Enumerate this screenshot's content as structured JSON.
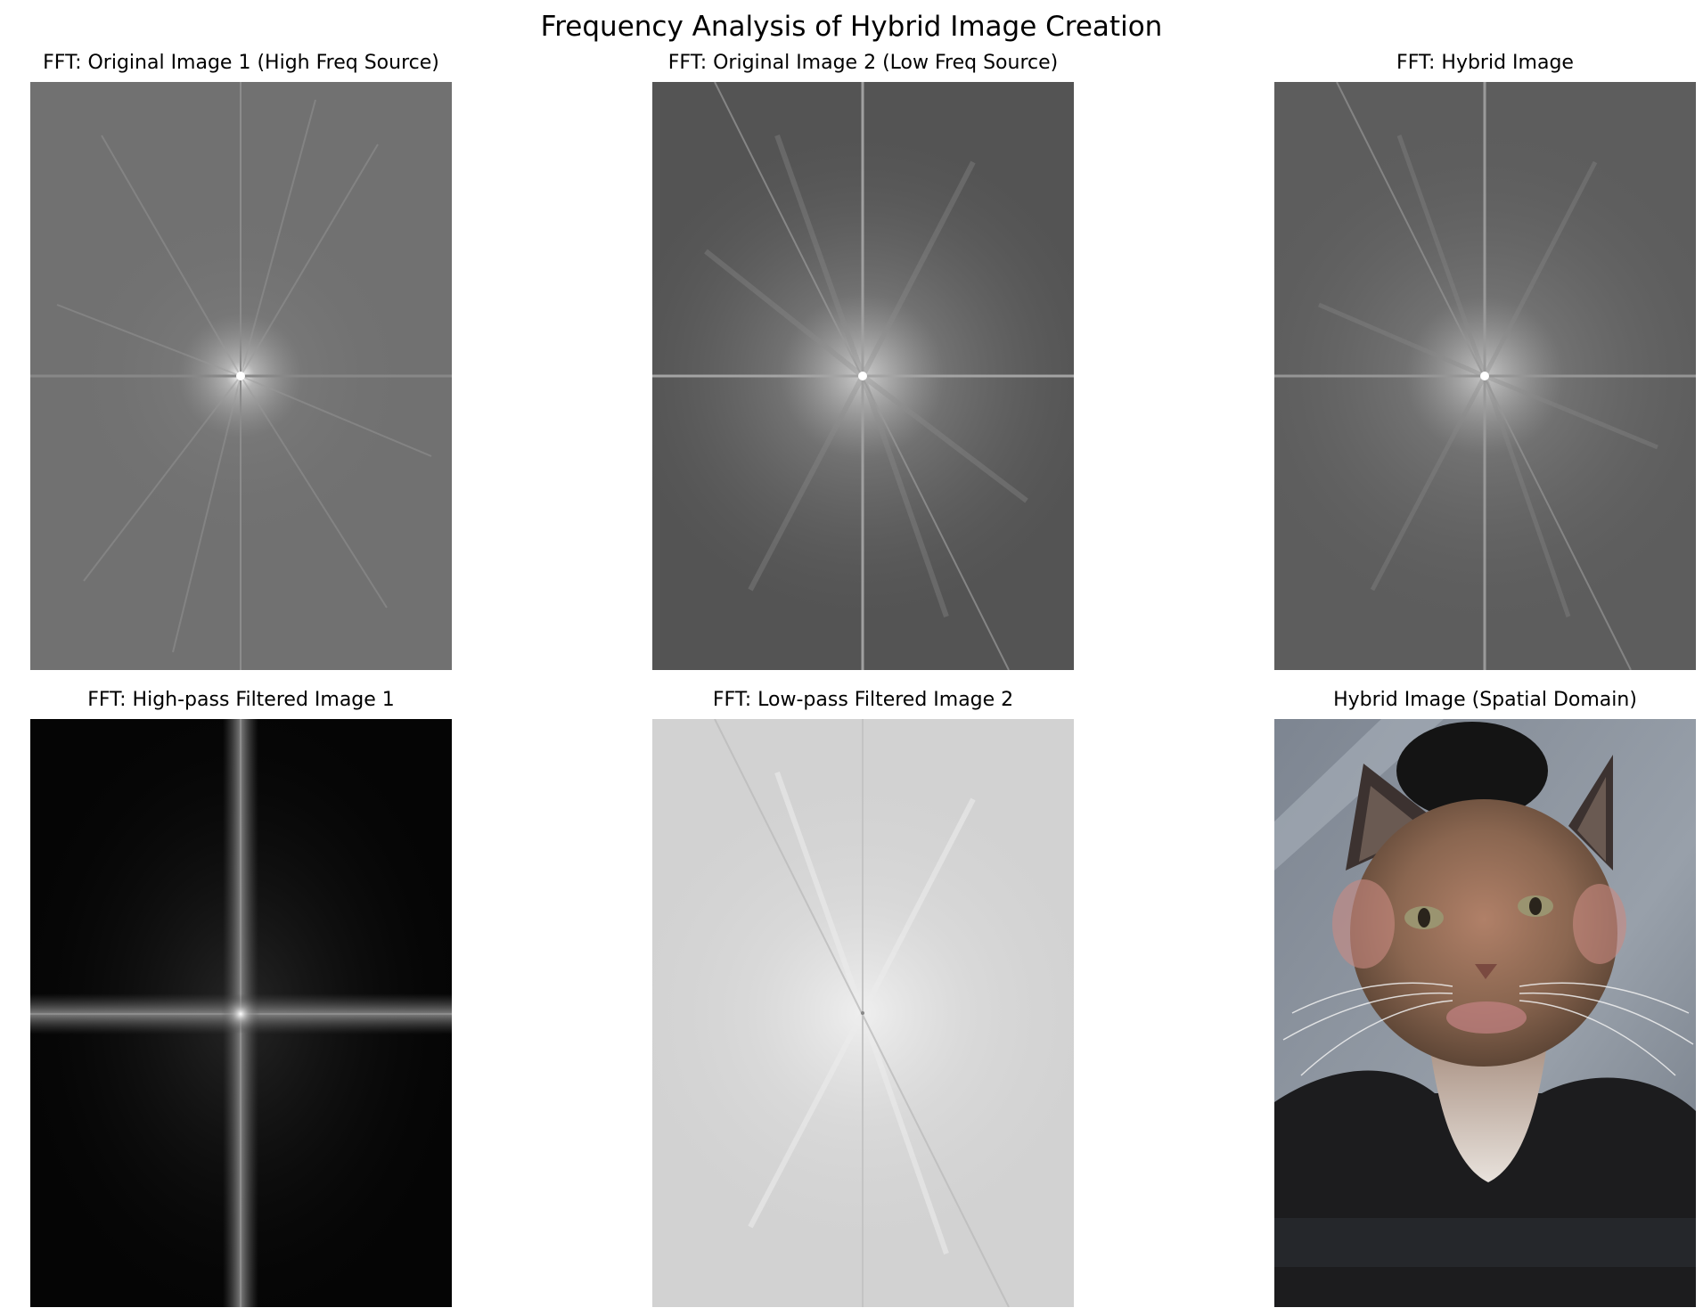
{
  "figure": {
    "title": "Frequency Analysis of Hybrid Image Creation"
  },
  "panels": [
    {
      "title": "FFT: Original Image 1 (High Freq Source)",
      "kind": "fft-spectrum",
      "tone": "mid-gray"
    },
    {
      "title": "FFT: Original Image 2 (Low Freq Source)",
      "kind": "fft-spectrum",
      "tone": "mid-gray"
    },
    {
      "title": "FFT: Hybrid Image",
      "kind": "fft-spectrum",
      "tone": "mid-gray"
    },
    {
      "title": "FFT: High-pass Filtered Image 1",
      "kind": "fft-spectrum",
      "tone": "dark"
    },
    {
      "title": "FFT: Low-pass Filtered Image 2",
      "kind": "fft-spectrum",
      "tone": "light-gray"
    },
    {
      "title": "Hybrid Image (Spatial Domain)",
      "kind": "photo",
      "subject": "cat-face hybrid portrait"
    }
  ],
  "colors": {
    "fft_mid_gray": "#6f6f6f",
    "fft_dark": "#060606",
    "fft_light_gray": "#d4d4d4",
    "hybrid_background": "#8a9099",
    "cat_fur": "#8a6a55",
    "shirt_dark": "#1c1c1e"
  }
}
